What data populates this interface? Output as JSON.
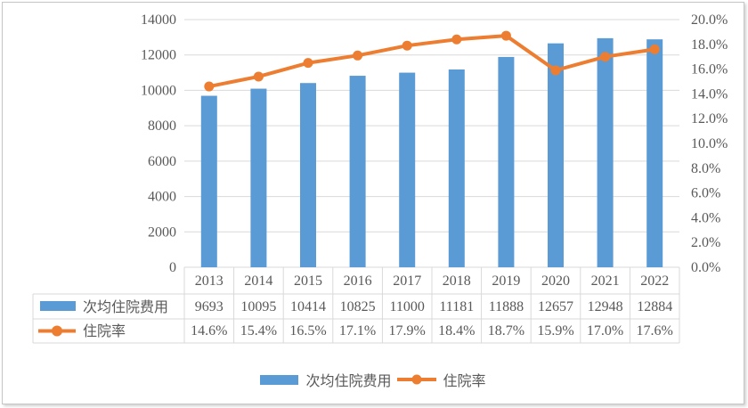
{
  "chart_data": {
    "type": "bar",
    "subtype": "combo-bar-line",
    "title": "",
    "categories": [
      "2013",
      "2014",
      "2015",
      "2016",
      "2017",
      "2018",
      "2019",
      "2020",
      "2021",
      "2022"
    ],
    "series": [
      {
        "name": "次均住院费用",
        "type": "bar",
        "axis": "left",
        "color": "#5B9BD5",
        "values": [
          9693,
          10095,
          10414,
          10825,
          11000,
          11181,
          11888,
          12657,
          12948,
          12884
        ],
        "display_values": [
          "9693",
          "10095",
          "10414",
          "10825",
          "11000",
          "11181",
          "11888",
          "12657",
          "12948",
          "12884"
        ]
      },
      {
        "name": "住院率",
        "type": "line",
        "axis": "right",
        "color": "#ED7D31",
        "values": [
          14.6,
          15.4,
          16.5,
          17.1,
          17.9,
          18.4,
          18.7,
          15.9,
          17.0,
          17.6
        ],
        "display_values": [
          "14.6%",
          "15.4%",
          "16.5%",
          "17.1%",
          "17.9%",
          "18.4%",
          "18.7%",
          "15.9%",
          "17.0%",
          "17.6%"
        ]
      }
    ],
    "left_axis": {
      "min": 0,
      "max": 14000,
      "step": 2000,
      "ticks_top_to_bottom": [
        "14000",
        "12000",
        "10000",
        "8000",
        "6000",
        "4000",
        "2000",
        "0"
      ]
    },
    "right_axis": {
      "min": 0,
      "max": 20,
      "step": 2,
      "ticks_top_to_bottom": [
        "20.0%",
        "18.0%",
        "16.0%",
        "14.0%",
        "12.0%",
        "10.0%",
        "8.0%",
        "6.0%",
        "4.0%",
        "2.0%",
        "0.0%"
      ]
    },
    "grid": true,
    "data_table": true,
    "legend_position": "bottom"
  },
  "legend": {
    "series1": "次均住院费用",
    "series2": "住院率"
  },
  "colors": {
    "bar": "#5B9BD5",
    "line": "#ED7D31",
    "grid": "#D9D9D9",
    "table_border": "#D9D9D9",
    "text": "#595959",
    "frame_border": "#C6C6C6"
  }
}
